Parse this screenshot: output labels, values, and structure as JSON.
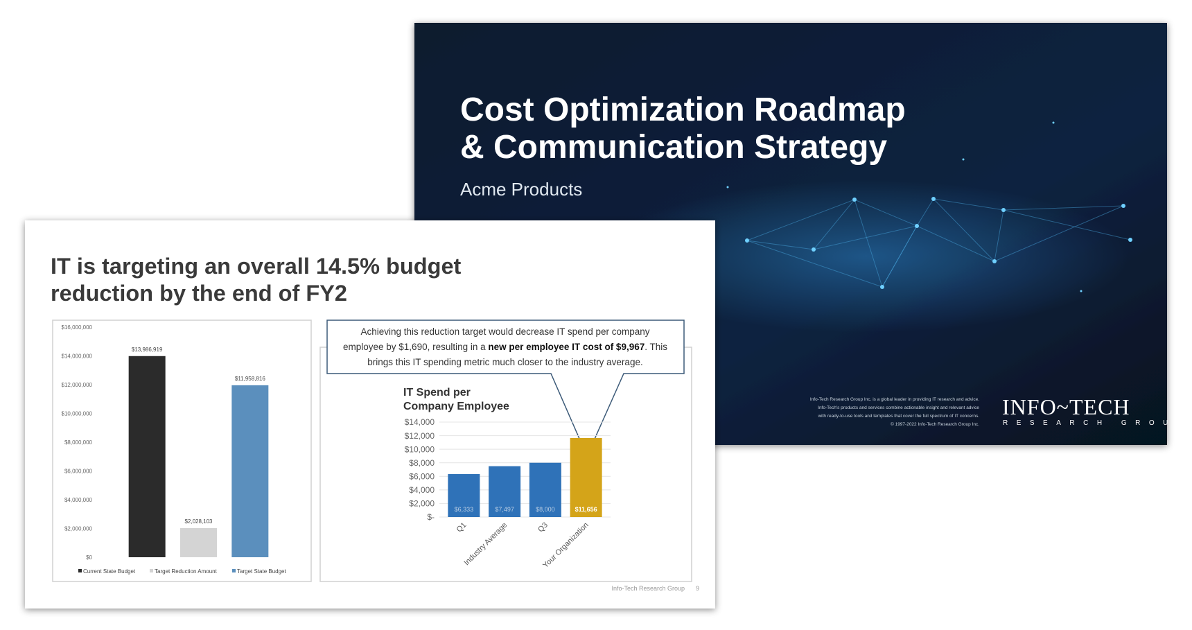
{
  "back_slide": {
    "title_lines": [
      "Cost Optimization Roadmap",
      "& Communication Strategy"
    ],
    "subtitle": "Acme Products",
    "disclaimer_lines": [
      "Info-Tech Research Group Inc. is a global leader in providing IT research and advice.",
      "Info-Tech's products and services combine actionable insight and relevant advice",
      "with ready-to-use tools and templates that cover the full spectrum of IT concerns.",
      "© 1997-2022 Info-Tech Research Group Inc."
    ],
    "logo": "INFO~TECH",
    "logo_sub": "RESEARCH GROUP"
  },
  "front_slide": {
    "title_lines": [
      "IT is targeting an overall 14.5% budget",
      "reduction by the end of FY2"
    ],
    "callout": {
      "line1": "Achieving this reduction target would decrease IT spend per company",
      "line2_before": "employee by $1,690, resulting in a ",
      "line2_bold": "new per employee IT cost of $9,967",
      "line2_after": ". This",
      "line3": "brings this IT spending metric much closer to the industry average."
    },
    "footer": "Info-Tech Research Group",
    "page": "9"
  },
  "chart_data": [
    {
      "type": "bar",
      "categories": [
        null
      ],
      "series": [
        {
          "name": "Current State Budget",
          "color": "#2b2b2b",
          "values": [
            13986919
          ],
          "value_labels": [
            "$13,986,919"
          ]
        },
        {
          "name": "Target Reduction Amount",
          "color": "#d4d4d4",
          "values": [
            2028103
          ],
          "value_labels": [
            "$2,028,103"
          ]
        },
        {
          "name": "Target State Budget",
          "color": "#5b8fbd",
          "values": [
            11958816
          ],
          "value_labels": [
            "$11,958,816"
          ]
        }
      ],
      "ylim": [
        0,
        16000000
      ],
      "yticks": [
        {
          "value": 0,
          "label": "$0"
        },
        {
          "value": 2000000,
          "label": "$2,000,000"
        },
        {
          "value": 4000000,
          "label": "$4,000,000"
        },
        {
          "value": 6000000,
          "label": "$6,000,000"
        },
        {
          "value": 8000000,
          "label": "$8,000,000"
        },
        {
          "value": 10000000,
          "label": "$10,000,000"
        },
        {
          "value": 12000000,
          "label": "$12,000,000"
        },
        {
          "value": 14000000,
          "label": "$14,000,000"
        },
        {
          "value": 16000000,
          "label": "$16,000,000"
        }
      ],
      "grid": false,
      "legend": "bottom"
    },
    {
      "type": "bar",
      "title_lines": [
        "IT Spend per",
        "Company Employee"
      ],
      "categories": [
        "Q1",
        "Industry Average",
        "Q3",
        "Your Organization"
      ],
      "values": [
        6333,
        7497,
        8000,
        11656
      ],
      "value_labels": [
        "$6,333",
        "$7,497",
        "$8,000",
        "$11,656"
      ],
      "colors": [
        "#2f72b8",
        "#2f72b8",
        "#2f72b8",
        "#d4a419"
      ],
      "ylim": [
        0,
        14000
      ],
      "yticks": [
        {
          "value": 0,
          "label": "$-"
        },
        {
          "value": 2000,
          "label": "$2,000"
        },
        {
          "value": 4000,
          "label": "$4,000"
        },
        {
          "value": 6000,
          "label": "$6,000"
        },
        {
          "value": 8000,
          "label": "$8,000"
        },
        {
          "value": 10000,
          "label": "$10,000"
        },
        {
          "value": 12000,
          "label": "$12,000"
        },
        {
          "value": 14000,
          "label": "$14,000"
        }
      ],
      "grid": true
    }
  ]
}
